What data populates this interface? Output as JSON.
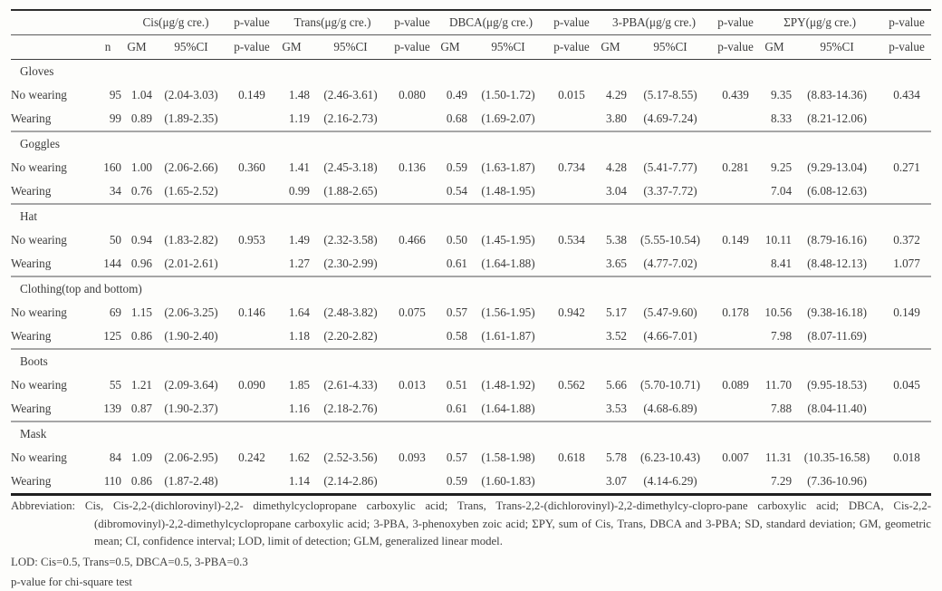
{
  "table": {
    "analyte_headers": [
      "Cis(μg/g cre.)",
      "Trans(μg/g cre.)",
      "DBCA(μg/g cre.)",
      "3-PBA(μg/g cre.)",
      "ΣPY(μg/g cre.)"
    ],
    "p_value_header": "p-value",
    "sub_headers": {
      "n": "n",
      "gm": "GM",
      "ci": "95%CI",
      "p": "p-value"
    },
    "groups": [
      {
        "label": "Gloves",
        "rows": [
          {
            "label": "No wearing",
            "n": "95",
            "values": [
              [
                "1.04",
                "(2.04-3.03)",
                "0.149"
              ],
              [
                "1.48",
                "(2.46-3.61)",
                "0.080"
              ],
              [
                "0.49",
                "(1.50-1.72)",
                "0.015"
              ],
              [
                "4.29",
                "(5.17-8.55)",
                "0.439"
              ],
              [
                "9.35",
                "(8.83-14.36)",
                "0.434"
              ]
            ]
          },
          {
            "label": "Wearing",
            "n": "99",
            "values": [
              [
                "0.89",
                "(1.89-2.35)",
                ""
              ],
              [
                "1.19",
                "(2.16-2.73)",
                ""
              ],
              [
                "0.68",
                "(1.69-2.07)",
                ""
              ],
              [
                "3.80",
                "(4.69-7.24)",
                ""
              ],
              [
                "8.33",
                "(8.21-12.06)",
                ""
              ]
            ]
          }
        ]
      },
      {
        "label": "Goggles",
        "rows": [
          {
            "label": "No wearing",
            "n": "160",
            "values": [
              [
                "1.00",
                "(2.06-2.66)",
                "0.360"
              ],
              [
                "1.41",
                "(2.45-3.18)",
                "0.136"
              ],
              [
                "0.59",
                "(1.63-1.87)",
                "0.734"
              ],
              [
                "4.28",
                "(5.41-7.77)",
                "0.281"
              ],
              [
                "9.25",
                "(9.29-13.04)",
                "0.271"
              ]
            ]
          },
          {
            "label": "Wearing",
            "n": "34",
            "values": [
              [
                "0.76",
                "(1.65-2.52)",
                ""
              ],
              [
                "0.99",
                "(1.88-2.65)",
                ""
              ],
              [
                "0.54",
                "(1.48-1.95)",
                ""
              ],
              [
                "3.04",
                "(3.37-7.72)",
                ""
              ],
              [
                "7.04",
                "(6.08-12.63)",
                ""
              ]
            ]
          }
        ]
      },
      {
        "label": "Hat",
        "rows": [
          {
            "label": "No wearing",
            "n": "50",
            "values": [
              [
                "0.94",
                "(1.83-2.82)",
                "0.953"
              ],
              [
                "1.49",
                "(2.32-3.58)",
                "0.466"
              ],
              [
                "0.50",
                "(1.45-1.95)",
                "0.534"
              ],
              [
                "5.38",
                "(5.55-10.54)",
                "0.149"
              ],
              [
                "10.11",
                "(8.79-16.16)",
                "0.372"
              ]
            ]
          },
          {
            "label": "Wearing",
            "n": "144",
            "values": [
              [
                "0.96",
                "(2.01-2.61)",
                ""
              ],
              [
                "1.27",
                "(2.30-2.99)",
                ""
              ],
              [
                "0.61",
                "(1.64-1.88)",
                ""
              ],
              [
                "3.65",
                "(4.77-7.02)",
                ""
              ],
              [
                "8.41",
                "(8.48-12.13)",
                "1.077"
              ]
            ]
          }
        ]
      },
      {
        "label": "Clothing(top and bottom)",
        "rows": [
          {
            "label": "No wearing",
            "n": "69",
            "values": [
              [
                "1.15",
                "(2.06-3.25)",
                "0.146"
              ],
              [
                "1.64",
                "(2.48-3.82)",
                "0.075"
              ],
              [
                "0.57",
                "(1.56-1.95)",
                "0.942"
              ],
              [
                "5.17",
                "(5.47-9.60)",
                "0.178"
              ],
              [
                "10.56",
                "(9.38-16.18)",
                "0.149"
              ]
            ]
          },
          {
            "label": "Wearing",
            "n": "125",
            "values": [
              [
                "0.86",
                "(1.90-2.40)",
                ""
              ],
              [
                "1.18",
                "(2.20-2.82)",
                ""
              ],
              [
                "0.58",
                "(1.61-1.87)",
                ""
              ],
              [
                "3.52",
                "(4.66-7.01)",
                ""
              ],
              [
                "7.98",
                "(8.07-11.69)",
                ""
              ]
            ]
          }
        ]
      },
      {
        "label": "Boots",
        "rows": [
          {
            "label": "No wearing",
            "n": "55",
            "values": [
              [
                "1.21",
                "(2.09-3.64)",
                "0.090"
              ],
              [
                "1.85",
                "(2.61-4.33)",
                "0.013"
              ],
              [
                "0.51",
                "(1.48-1.92)",
                "0.562"
              ],
              [
                "5.66",
                "(5.70-10.71)",
                "0.089"
              ],
              [
                "11.70",
                "(9.95-18.53)",
                "0.045"
              ]
            ]
          },
          {
            "label": "Wearing",
            "n": "139",
            "values": [
              [
                "0.87",
                "(1.90-2.37)",
                ""
              ],
              [
                "1.16",
                "(2.18-2.76)",
                ""
              ],
              [
                "0.61",
                "(1.64-1.88)",
                ""
              ],
              [
                "3.53",
                "(4.68-6.89)",
                ""
              ],
              [
                "7.88",
                "(8.04-11.40)",
                ""
              ]
            ]
          }
        ]
      },
      {
        "label": "Mask",
        "rows": [
          {
            "label": "No wearing",
            "n": "84",
            "values": [
              [
                "1.09",
                "(2.06-2.95)",
                "0.242"
              ],
              [
                "1.62",
                "(2.52-3.56)",
                "0.093"
              ],
              [
                "0.57",
                "(1.58-1.98)",
                "0.618"
              ],
              [
                "5.78",
                "(6.23-10.43)",
                "0.007"
              ],
              [
                "11.31",
                "(10.35-16.58)",
                "0.018"
              ]
            ]
          },
          {
            "label": "Wearing",
            "n": "110",
            "values": [
              [
                "0.86",
                "(1.87-2.48)",
                ""
              ],
              [
                "1.14",
                "(2.14-2.86)",
                ""
              ],
              [
                "0.59",
                "(1.60-1.83)",
                ""
              ],
              [
                "3.07",
                "(4.14-6.29)",
                ""
              ],
              [
                "7.29",
                "(7.36-10.96)",
                ""
              ]
            ]
          }
        ]
      }
    ]
  },
  "footnotes": {
    "abbreviation_label": "Abbreviation:",
    "abbreviation_text": "Cis, Cis-2,2-(dichlorovinyl)-2,2- dimethylcyclopropane carboxylic acid; Trans, Trans-2,2-(dichlorovinyl)-2,2-dimethylcy-clopro-pane carboxylic acid; DBCA, Cis-2,2-(dibromovinyl)-2,2-dimethylcyclopropane carboxylic acid; 3-PBA, 3-phenoxyben zoic acid; ΣPY, sum of Cis, Trans, DBCA and 3-PBA; SD, standard deviation; GM, geometric mean; CI, confidence interval; LOD, limit of detection; GLM, generalized linear model.",
    "lod_line": "LOD: Cis=0.5, Trans=0.5, DBCA=0.5, 3-PBA=0.3",
    "p_value_line": "p-value for chi-square test"
  }
}
